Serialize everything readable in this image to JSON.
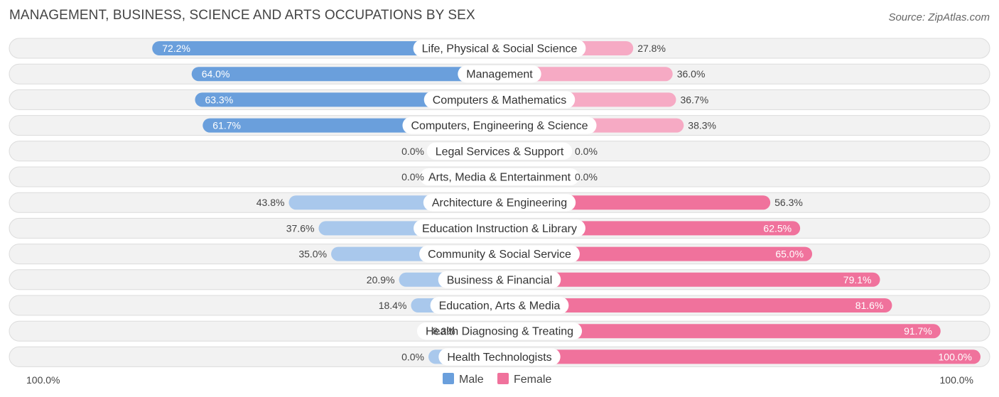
{
  "title": "MANAGEMENT, BUSINESS, SCIENCE AND ARTS OCCUPATIONS BY SEX",
  "source": "Source: ZipAtlas.com",
  "colors": {
    "male": "#6a9fdc",
    "male_light": "#a9c8ec",
    "female": "#f0729c",
    "female_light": "#f6aac4",
    "row_bg": "#f2f2f2",
    "row_border": "#dcdcdc"
  },
  "chart_data": {
    "type": "bar",
    "orientation": "horizontal-diverging",
    "title": "MANAGEMENT, BUSINESS, SCIENCE AND ARTS OCCUPATIONS BY SEX",
    "categories": [
      "Life, Physical & Social Science",
      "Management",
      "Computers & Mathematics",
      "Computers, Engineering & Science",
      "Legal Services & Support",
      "Arts, Media & Entertainment",
      "Architecture & Engineering",
      "Education Instruction & Library",
      "Community & Social Service",
      "Business & Financial",
      "Education, Arts & Media",
      "Health Diagnosing & Treating",
      "Health Technologists"
    ],
    "series": [
      {
        "name": "Male",
        "values": [
          72.2,
          64.0,
          63.3,
          61.7,
          0.0,
          0.0,
          43.8,
          37.6,
          35.0,
          20.9,
          18.4,
          8.3,
          0.0
        ],
        "labels": [
          "72.2%",
          "64.0%",
          "63.3%",
          "61.7%",
          "0.0%",
          "0.0%",
          "43.8%",
          "37.6%",
          "35.0%",
          "20.9%",
          "18.4%",
          "8.3%",
          "0.0%"
        ]
      },
      {
        "name": "Female",
        "values": [
          27.8,
          36.0,
          36.7,
          38.3,
          0.0,
          0.0,
          56.3,
          62.5,
          65.0,
          79.1,
          81.6,
          91.7,
          100.0
        ],
        "labels": [
          "27.8%",
          "36.0%",
          "36.7%",
          "38.3%",
          "0.0%",
          "0.0%",
          "56.3%",
          "62.5%",
          "65.0%",
          "79.1%",
          "81.6%",
          "91.7%",
          "100.0%"
        ]
      }
    ],
    "axis_min_label": "100.0%",
    "axis_max_label": "100.0%",
    "xlim": [
      -100,
      100
    ],
    "legend": [
      "Male",
      "Female"
    ],
    "legend_position": "bottom-center"
  }
}
